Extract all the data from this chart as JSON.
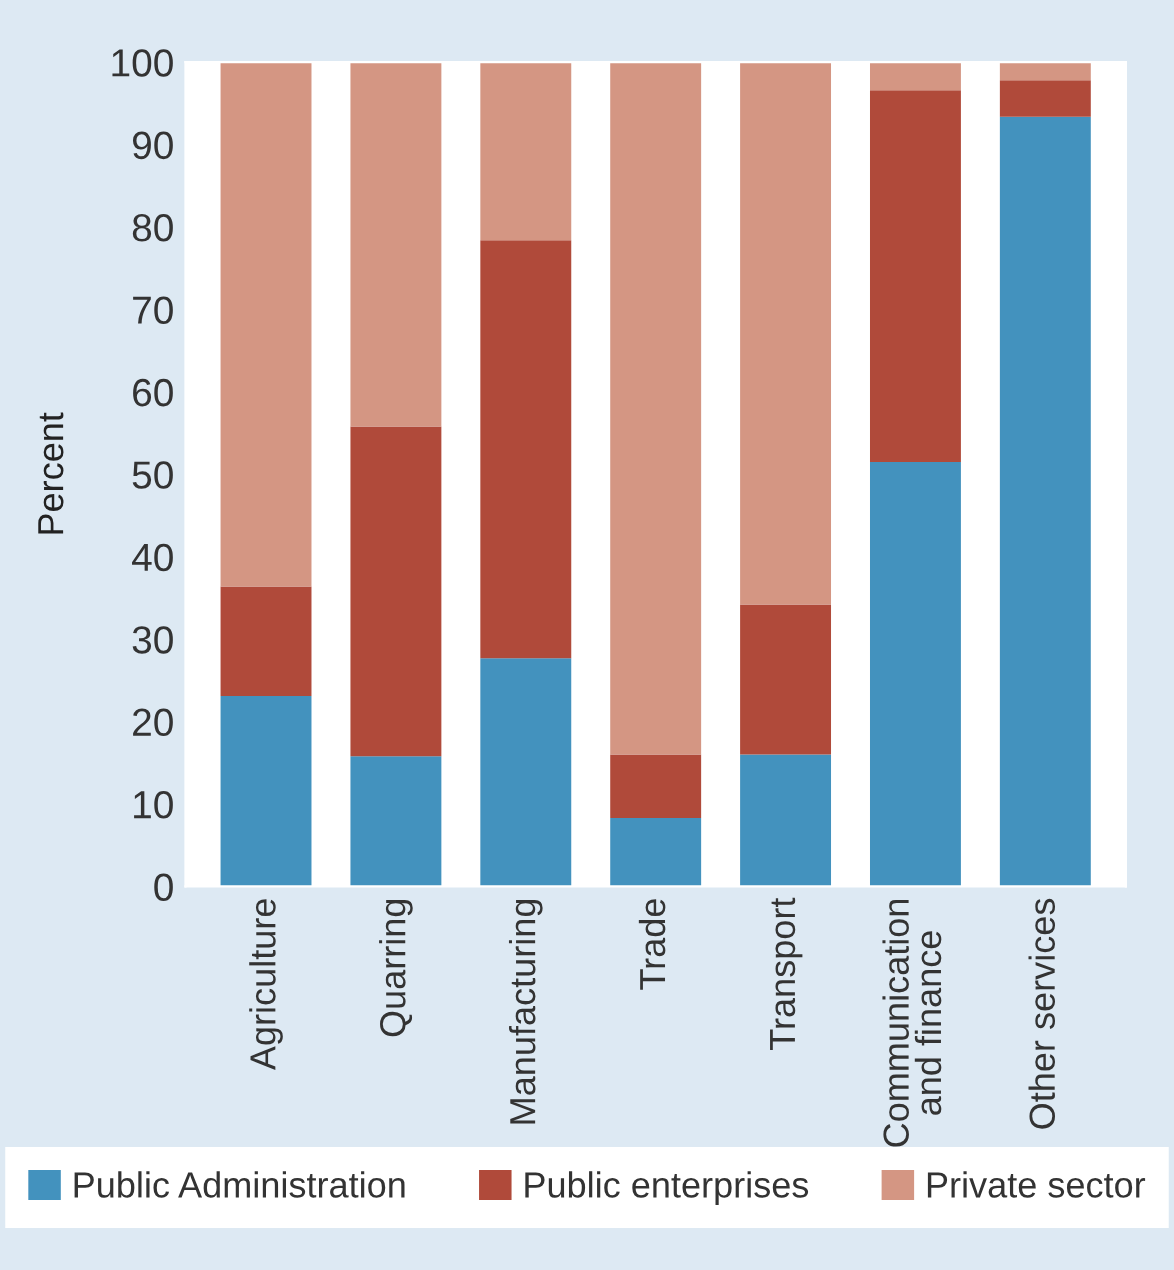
{
  "chart_data": {
    "type": "bar",
    "stacked": true,
    "ylabel": "Percent",
    "categories": [
      "Agriculture",
      "Quarring",
      "Manufacturing",
      "Trade",
      "Transport",
      "Communication\nand finance",
      "Other services"
    ],
    "series": [
      {
        "name": "Public Administration",
        "color": "#4392be",
        "values": [
          23.1,
          15.8,
          27.7,
          8.3,
          16.0,
          51.5,
          93.4
        ]
      },
      {
        "name": "Public enterprises",
        "color": "#b04a3a",
        "values": [
          13.3,
          40.0,
          50.7,
          7.7,
          18.2,
          45.1,
          4.4
        ]
      },
      {
        "name": "Private sector",
        "color": "#d49683",
        "values": [
          63.6,
          44.2,
          21.6,
          84.0,
          65.8,
          3.4,
          2.2
        ]
      }
    ],
    "ylim": [
      0,
      100
    ],
    "yticks": [
      0,
      10,
      20,
      30,
      40,
      50,
      60,
      70,
      80,
      90,
      100
    ],
    "grid": false,
    "legend": "bottom"
  }
}
